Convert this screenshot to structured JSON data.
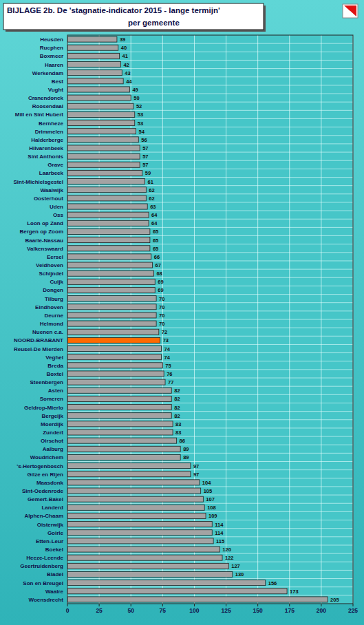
{
  "chart_data": {
    "type": "bar",
    "orientation": "horizontal",
    "title": "BIJLAGE 2b.  De 'stagnatie-indicator 2015 - lange termijn'",
    "subtitle": "per gemeente",
    "categories": [
      "Heusden",
      "Rucphen",
      "Boxmeer",
      "Haaren",
      "Werkendam",
      "Best",
      "Vught",
      "Cranendonck",
      "Roosendaal",
      "Mill en Sint Hubert",
      "Bernheze",
      "Drimmelen",
      "Halderberge",
      "Hilvarenbeek",
      "Sint Anthonis",
      "Grave",
      "Laarbeek",
      "Sint-Michielsgestel",
      "Waalwijk",
      "Oosterhout",
      "Uden",
      "Oss",
      "Loon op Zand",
      "Bergen op Zoom",
      "Baarle-Nassau",
      "Valkenswaard",
      "Eersel",
      "Veldhoven",
      "Schijndel",
      "Cuijk",
      "Dongen",
      "Tilburg",
      "Eindhoven",
      "Deurne",
      "Helmond",
      "Nuenen c.a.",
      "NOORD-BRABANT",
      "Reusel-De Mierden",
      "Veghel",
      "Breda",
      "Boxtel",
      "Steenbergen",
      "Asten",
      "Someren",
      "Geldrop-Mierlo",
      "Bergeijk",
      "Moerdijk",
      "Zundert",
      "Oirschot",
      "Aalburg",
      "Woudrichem",
      "'s-Hertogenbosch",
      "Gilze en Rijen",
      "Maasdonk",
      "Sint-Oedenrode",
      "Gemert-Bakel",
      "Landerd",
      "Alphen-Chaam",
      "Oisterwijk",
      "Goirle",
      "Etten-Leur",
      "Boekel",
      "Heeze-Leende",
      "Geertruidenberg",
      "Bladel",
      "Son en Breugel",
      "Waalre",
      "Woensdrecht"
    ],
    "values": [
      39,
      40,
      41,
      42,
      43,
      44,
      49,
      50,
      52,
      53,
      53,
      54,
      56,
      57,
      57,
      57,
      59,
      61,
      62,
      62,
      63,
      64,
      64,
      65,
      65,
      65,
      66,
      67,
      68,
      69,
      69,
      70,
      70,
      70,
      70,
      72,
      73,
      74,
      74,
      75,
      76,
      77,
      82,
      82,
      82,
      82,
      83,
      83,
      86,
      89,
      89,
      97,
      97,
      104,
      105,
      107,
      108,
      109,
      114,
      114,
      115,
      120,
      122,
      127,
      130,
      156,
      173,
      205
    ],
    "colors": [
      "#a3a3a3",
      "#a3a3a3",
      "#a3a3a3",
      "#a3a3a3",
      "#a3a3a3",
      "#a3a3a3",
      "#a3a3a3",
      "#a3a3a3",
      "#a3a3a3",
      "#a3a3a3",
      "#a3a3a3",
      "#a3a3a3",
      "#a3a3a3",
      "#a3a3a3",
      "#a3a3a3",
      "#a3a3a3",
      "#a3a3a3",
      "#a3a3a3",
      "#a3a3a3",
      "#a3a3a3",
      "#a3a3a3",
      "#a3a3a3",
      "#a3a3a3",
      "#a3a3a3",
      "#a3a3a3",
      "#a3a3a3",
      "#a3a3a3",
      "#a3a3a3",
      "#a3a3a3",
      "#a3a3a3",
      "#a3a3a3",
      "#a3a3a3",
      "#a3a3a3",
      "#a3a3a3",
      "#a3a3a3",
      "#a3a3a3",
      "#ff6a00",
      "#a3a3a3",
      "#a3a3a3",
      "#a3a3a3",
      "#a3a3a3",
      "#a3a3a3",
      "#a3a3a3",
      "#a3a3a3",
      "#a3a3a3",
      "#a3a3a3",
      "#a3a3a3",
      "#a3a3a3",
      "#a3a3a3",
      "#a3a3a3",
      "#a3a3a3",
      "#a3a3a3",
      "#a3a3a3",
      "#a3a3a3",
      "#a3a3a3",
      "#a3a3a3",
      "#a3a3a3",
      "#a3a3a3",
      "#a3a3a3",
      "#a3a3a3",
      "#a3a3a3",
      "#a3a3a3",
      "#a3a3a3",
      "#a3a3a3",
      "#a3a3a3",
      "#a3a3a3",
      "#a3a3a3",
      "#a3a3a3"
    ],
    "xlim": [
      0,
      225
    ],
    "xticks": [
      0,
      25,
      50,
      75,
      100,
      125,
      150,
      175,
      200,
      225
    ],
    "grid": true,
    "data_labels": true
  }
}
